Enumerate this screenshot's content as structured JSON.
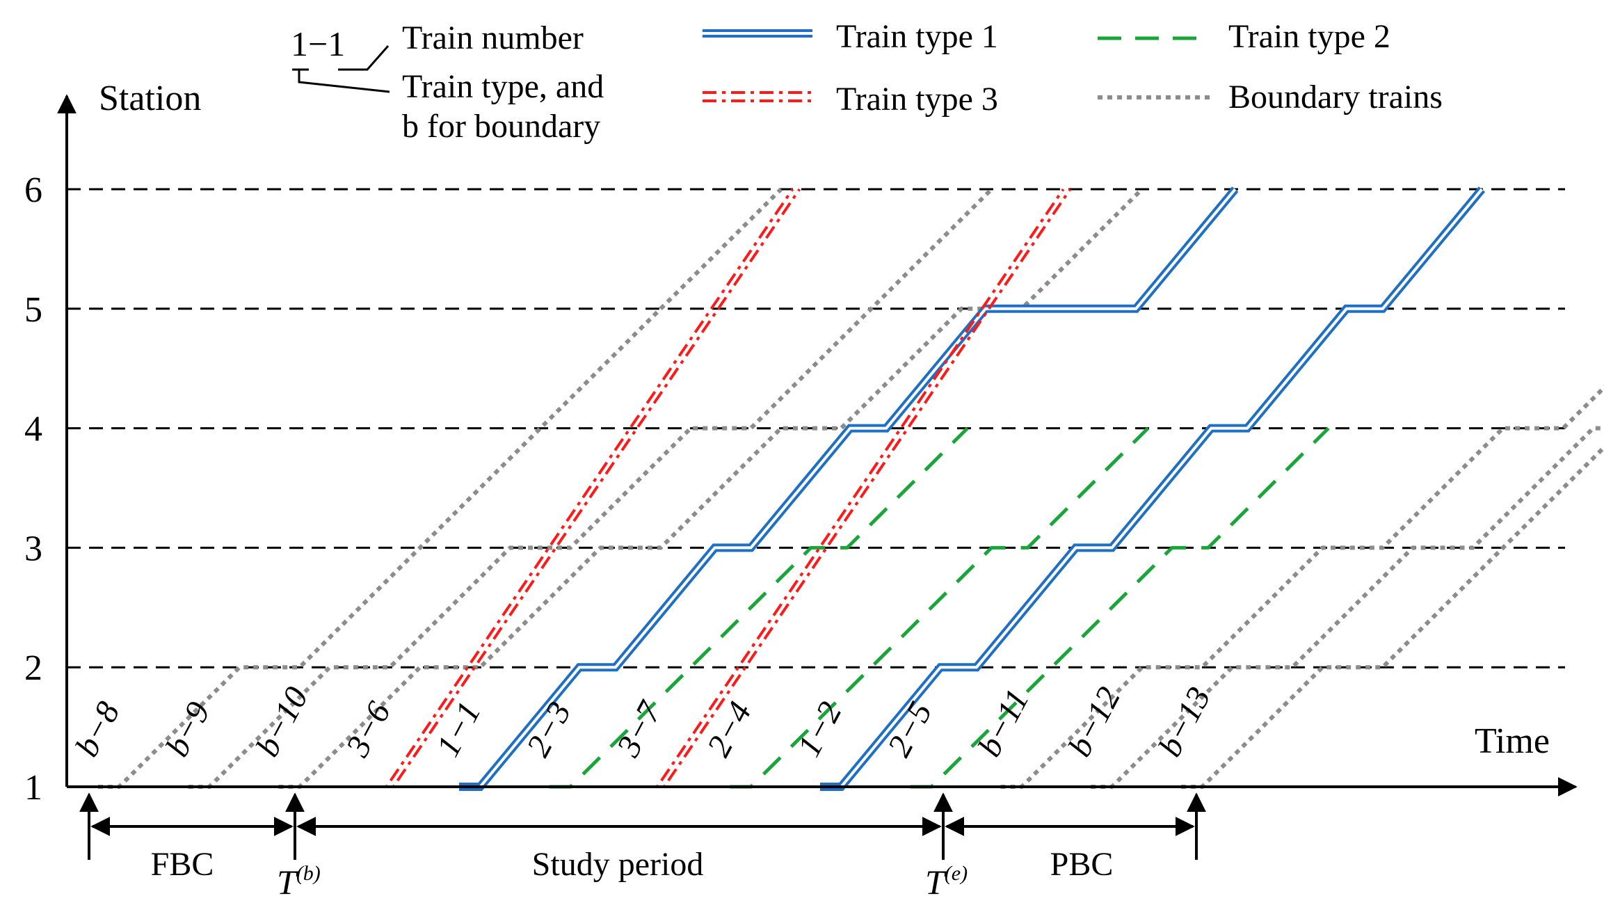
{
  "chart_data": {
    "type": "time-space-diagram",
    "y_label": "Station",
    "x_label": "Time",
    "stations": [
      "1",
      "2",
      "3",
      "4",
      "5",
      "6"
    ],
    "legend": {
      "number_example": "1−1",
      "number_desc": "Train number",
      "type_desc_line1": "Train type, and",
      "type_desc_line2": "b for boundary",
      "entries": [
        {
          "style": "double-blue",
          "label": "Train type 1"
        },
        {
          "style": "dash-green",
          "label": "Train type 2"
        },
        {
          "style": "dashdot-red",
          "label": "Train type 3"
        },
        {
          "style": "dot-gray",
          "label": "Boundary trains"
        }
      ]
    },
    "colors": {
      "type1": "#1f6fc4",
      "type2": "#1aa53a",
      "type3": "#ff1a1a",
      "boundary": "#8c8c8c"
    },
    "periods": [
      {
        "label": "FBC"
      },
      {
        "label": "Study period"
      },
      {
        "label": "PBC"
      }
    ],
    "period_marks": [
      {
        "base": "T",
        "sup": "(b)"
      },
      {
        "base": "T",
        "sup": "(e)"
      }
    ],
    "trains": [
      {
        "id": "b−8",
        "type": "b",
        "depart_t": 0.5,
        "run": 2.0,
        "dwells": [
          1,
          0,
          0,
          0
        ]
      },
      {
        "id": "b−9",
        "type": "b",
        "depart_t": 2.0,
        "run": 2.0,
        "dwells": [
          1,
          1,
          1,
          0
        ]
      },
      {
        "id": "b−10",
        "type": "b",
        "depart_t": 3.5,
        "run": 2.0,
        "dwells": [
          1,
          1,
          1,
          1
        ]
      },
      {
        "id": "3−6",
        "type": "3",
        "depart_t": 5.0,
        "run": 1.35,
        "dwells": [
          0,
          0,
          0,
          0
        ]
      },
      {
        "id": "1−1",
        "type": "1",
        "depart_t": 6.5,
        "run": 1.65,
        "dwells": [
          0.6,
          0.6,
          0.6,
          2.5
        ]
      },
      {
        "id": "2−3",
        "type": "2",
        "depart_t": 8.0,
        "run": 2.0,
        "dwells": [
          0,
          0.6,
          0
        ]
      },
      {
        "id": "3−7",
        "type": "3",
        "depart_t": 9.5,
        "run": 1.35,
        "dwells": [
          0,
          0,
          0,
          0
        ]
      },
      {
        "id": "2−4",
        "type": "2",
        "depart_t": 11.0,
        "run": 2.0,
        "dwells": [
          0,
          0.6,
          0
        ]
      },
      {
        "id": "1−2",
        "type": "1",
        "depart_t": 12.5,
        "run": 1.65,
        "dwells": [
          0.6,
          0.6,
          0.6,
          0.6
        ]
      },
      {
        "id": "2−5",
        "type": "2",
        "depart_t": 14.0,
        "run": 2.0,
        "dwells": [
          0,
          0.6,
          0
        ]
      },
      {
        "id": "b−11",
        "type": "b",
        "depart_t": 15.5,
        "run": 2.0,
        "dwells": [
          1,
          1,
          1,
          1
        ]
      },
      {
        "id": "b−12",
        "type": "b",
        "depart_t": 17.0,
        "run": 2.0,
        "dwells": [
          1,
          1,
          1,
          0
        ]
      },
      {
        "id": "b−13",
        "type": "b",
        "depart_t": 18.5,
        "run": 2.0,
        "dwells": [
          1,
          0,
          0,
          0
        ]
      }
    ]
  }
}
